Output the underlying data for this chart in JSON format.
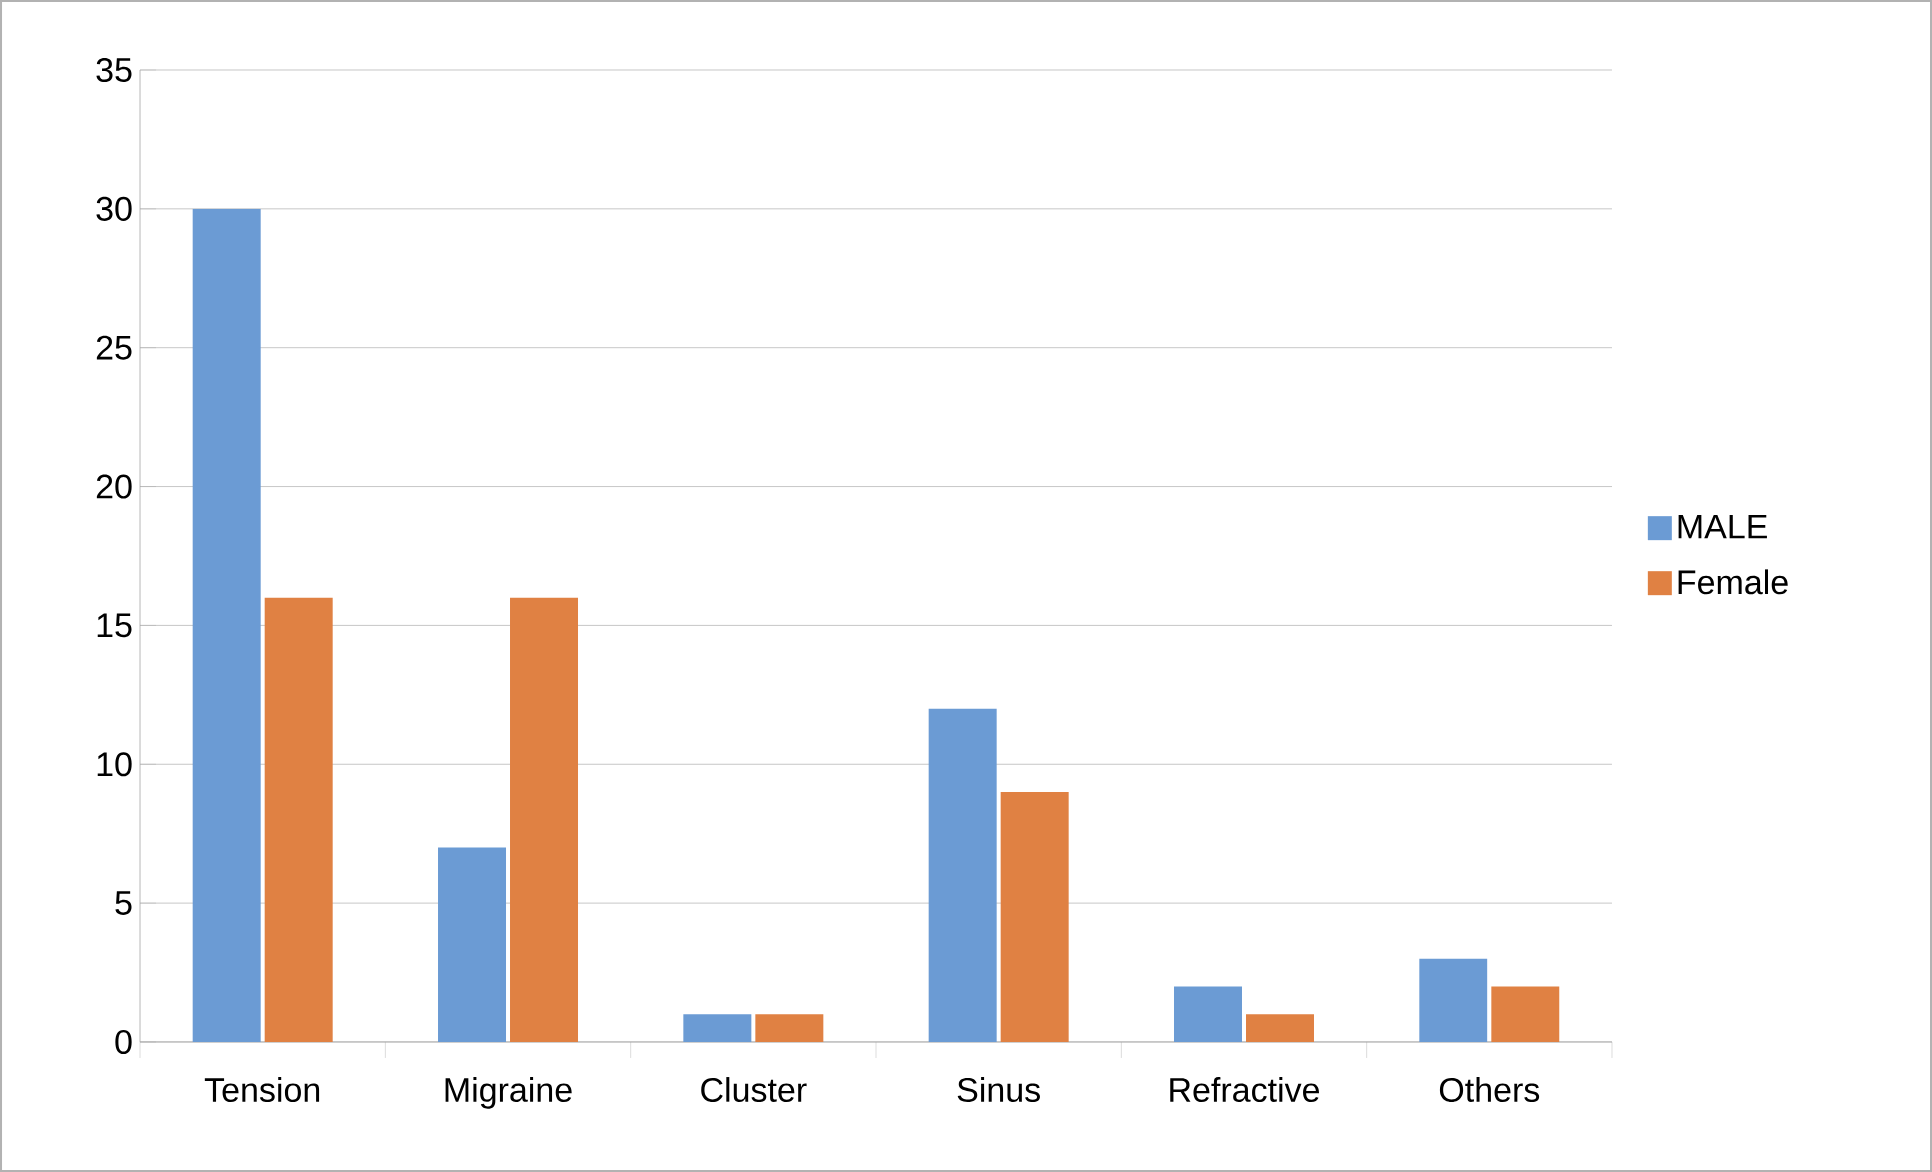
{
  "chart_data": {
    "type": "bar",
    "categories": [
      "Tension",
      "Migraine",
      "Cluster",
      "Sinus",
      "Refractive",
      "Others"
    ],
    "series": [
      {
        "name": "MALE",
        "color": "#6b9bd4",
        "values": [
          30,
          7,
          1,
          12,
          2,
          3
        ]
      },
      {
        "name": "Female",
        "color": "#e08143",
        "values": [
          16,
          16,
          1,
          9,
          1,
          2
        ]
      }
    ],
    "ylim": [
      0,
      35
    ],
    "yticks": [
      0,
      5,
      10,
      15,
      20,
      25,
      30,
      35
    ],
    "grid": "y",
    "legend": "right"
  }
}
